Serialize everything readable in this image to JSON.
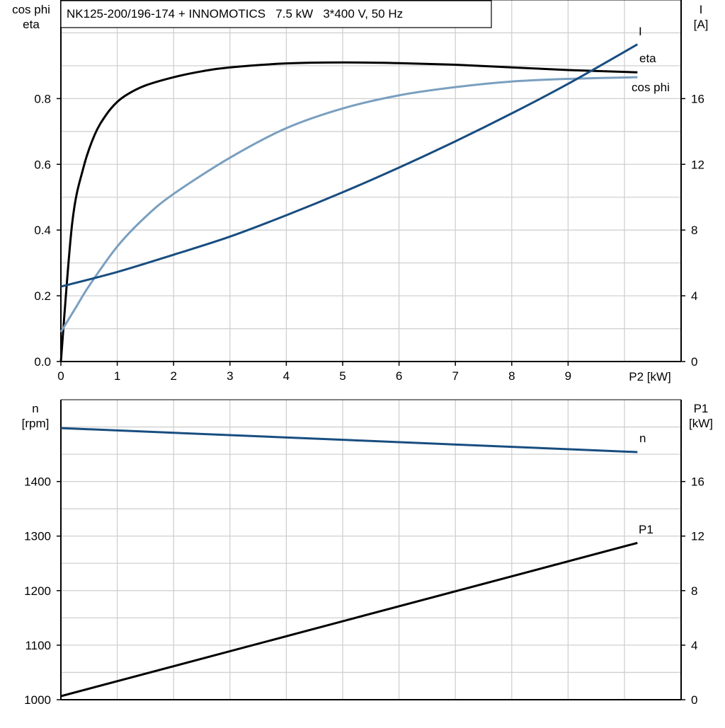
{
  "chart_data": [
    {
      "type": "line",
      "title": "NK125-200/196-174 + INNOMOTICS   7.5 kW   3*400 V, 50 Hz",
      "xlabel": "P2 [kW]",
      "ylabel_left": [
        "cos phi",
        "eta"
      ],
      "ylabel_right": [
        "I",
        "[A]"
      ],
      "xlim": [
        0,
        11.0
      ],
      "ylim_left": [
        0,
        1.1
      ],
      "ylim_right": [
        0,
        22
      ],
      "xticks": [
        0,
        1,
        2,
        3,
        4,
        5,
        6,
        7,
        8,
        9
      ],
      "yticks_left": [
        "0.0",
        "0.2",
        "0.4",
        "0.6",
        "0.8"
      ],
      "yticks_right": [
        "0",
        "4",
        "8",
        "12",
        "16"
      ],
      "grid": true,
      "series": [
        {
          "name": "eta",
          "axis": "left",
          "color": "#000000",
          "x": [
            0,
            0.2,
            0.4,
            0.6,
            0.8,
            1,
            1.2,
            1.5,
            2,
            2.5,
            3,
            4,
            5,
            6,
            7,
            8,
            9,
            10.23
          ],
          "y": [
            0,
            0.42,
            0.59,
            0.69,
            0.75,
            0.79,
            0.815,
            0.84,
            0.865,
            0.883,
            0.895,
            0.907,
            0.91,
            0.908,
            0.903,
            0.895,
            0.887,
            0.88
          ]
        },
        {
          "name": "cos phi",
          "axis": "left",
          "color": "#7a9fc0",
          "x": [
            0,
            0.25,
            0.5,
            1,
            1.5,
            2,
            3,
            4,
            5,
            6,
            7,
            8,
            9,
            10.23
          ],
          "y": [
            0.09,
            0.16,
            0.23,
            0.35,
            0.44,
            0.51,
            0.62,
            0.71,
            0.77,
            0.81,
            0.835,
            0.852,
            0.86,
            0.865
          ]
        },
        {
          "name": "I",
          "axis": "right",
          "color": "#184d80",
          "x": [
            0,
            1,
            2,
            3,
            4,
            5,
            6,
            7,
            8,
            9,
            10.23
          ],
          "y": [
            4.56,
            5.45,
            6.5,
            7.6,
            8.9,
            10.3,
            11.8,
            13.4,
            15.1,
            16.9,
            19.3
          ]
        }
      ]
    },
    {
      "type": "line",
      "xlim": [
        0,
        11.0
      ],
      "ylabel_left": [
        "n",
        "[rpm]"
      ],
      "ylabel_right": [
        "P1",
        "[kW]"
      ],
      "ylim_left": [
        1000,
        1550
      ],
      "ylim_right": [
        0,
        22
      ],
      "yticks_left": [
        "1000",
        "1100",
        "1200",
        "1300",
        "1400"
      ],
      "yticks_right": [
        "0",
        "4",
        "8",
        "12",
        "16"
      ],
      "grid": true,
      "series": [
        {
          "name": "n",
          "axis": "left",
          "color": "#184d80",
          "x": [
            0,
            10.23
          ],
          "y": [
            1498,
            1454
          ]
        },
        {
          "name": "P1",
          "axis": "right",
          "color": "#000000",
          "x": [
            0,
            10.23
          ],
          "y": [
            0.26,
            11.5
          ]
        }
      ]
    }
  ]
}
